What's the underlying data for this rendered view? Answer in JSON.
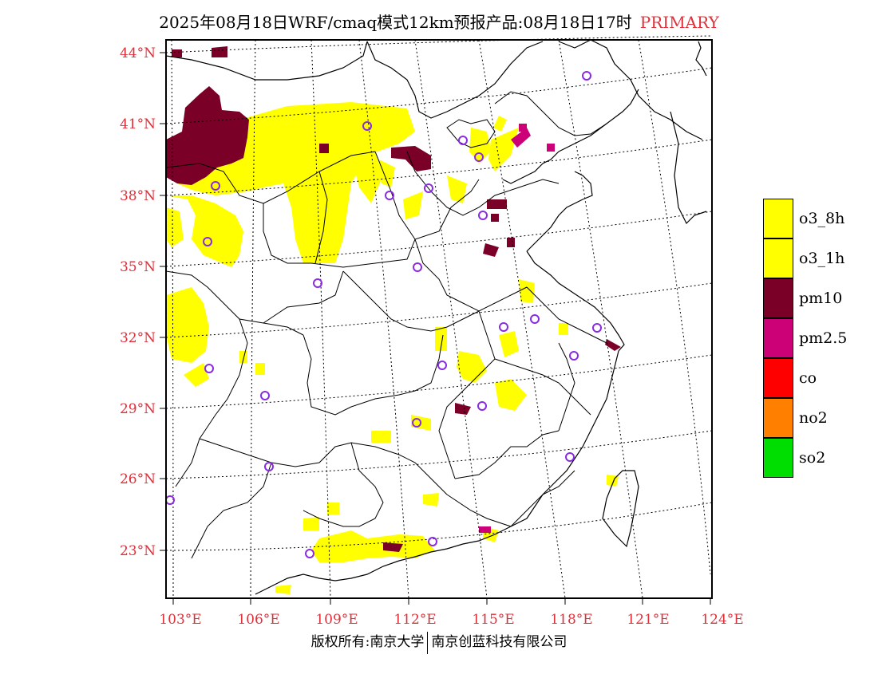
{
  "header": {
    "title": "2025年08月18日WRF/cmaq模式12km预报产品:08月18日17时",
    "mode": "PRIMARY"
  },
  "map": {
    "lat_labels": [
      "44°N",
      "41°N",
      "38°N",
      "35°N",
      "32°N",
      "29°N",
      "26°N",
      "23°N"
    ],
    "lon_labels": [
      "103°E",
      "106°E",
      "109°E",
      "112°E",
      "115°E",
      "118°E",
      "121°E",
      "124°E"
    ],
    "colors": {
      "o3": "#ffff00",
      "pm10": "#7a0028",
      "pm25": "#cc0077",
      "city_marker": "#8a2be2",
      "label": "#e0303a"
    }
  },
  "legend": {
    "items": [
      {
        "label": "o3_8h",
        "color": "#ffff00"
      },
      {
        "label": "o3_1h",
        "color": "#ffff00"
      },
      {
        "label": "pm10",
        "color": "#7a0028"
      },
      {
        "label": "pm2.5",
        "color": "#cc0077"
      },
      {
        "label": "co",
        "color": "#ff0000"
      },
      {
        "label": "no2",
        "color": "#ff7f00"
      },
      {
        "label": "so2",
        "color": "#00dd00"
      }
    ]
  },
  "footer": {
    "left": "版权所有:南京大学",
    "right": "南京创蓝科技有限公司"
  }
}
